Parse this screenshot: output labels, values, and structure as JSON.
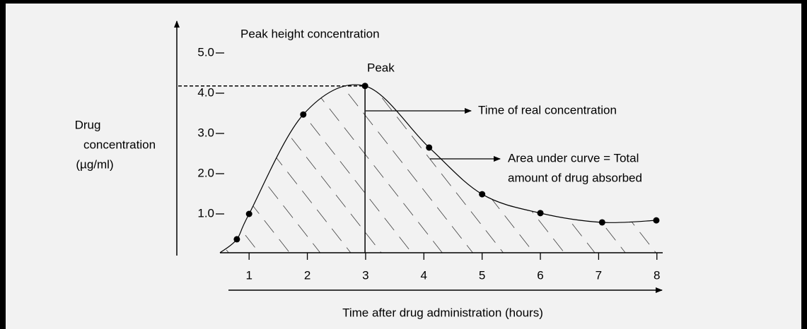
{
  "chart_data": {
    "type": "line",
    "title": "Peak height concentration",
    "y_label": [
      "Drug",
      "concentration",
      "(µg/ml)"
    ],
    "x_label": "Time after drug administration (hours)",
    "annotations": {
      "peak": "Peak",
      "time": "Time of real concentration",
      "area": [
        "Area under curve = Total",
        "amount of drug absorbed"
      ]
    },
    "series": [
      {
        "name": "Drug concentration",
        "color": "#000000",
        "x": [
          0.79,
          1.0,
          1.93,
          2.99,
          4.09,
          5.0,
          6.0,
          7.06,
          7.99
        ],
        "values": [
          0.37,
          1.0,
          3.47,
          4.18,
          2.65,
          1.49,
          1.02,
          0.79,
          0.84
        ]
      }
    ],
    "xlim": [
      0.5,
      8.1
    ],
    "xticks": [
      1,
      2,
      3,
      4,
      5,
      6,
      7,
      8
    ],
    "ylim": [
      0,
      5.8
    ],
    "yticks": [
      {
        "value": 1,
        "label": "1.0"
      },
      {
        "value": 2,
        "label": "2.0"
      },
      {
        "value": 3,
        "label": "3.0"
      },
      {
        "value": 4,
        "label": "4.0"
      },
      {
        "value": 5,
        "label": "5.0"
      }
    ],
    "peak_index": 3
  }
}
